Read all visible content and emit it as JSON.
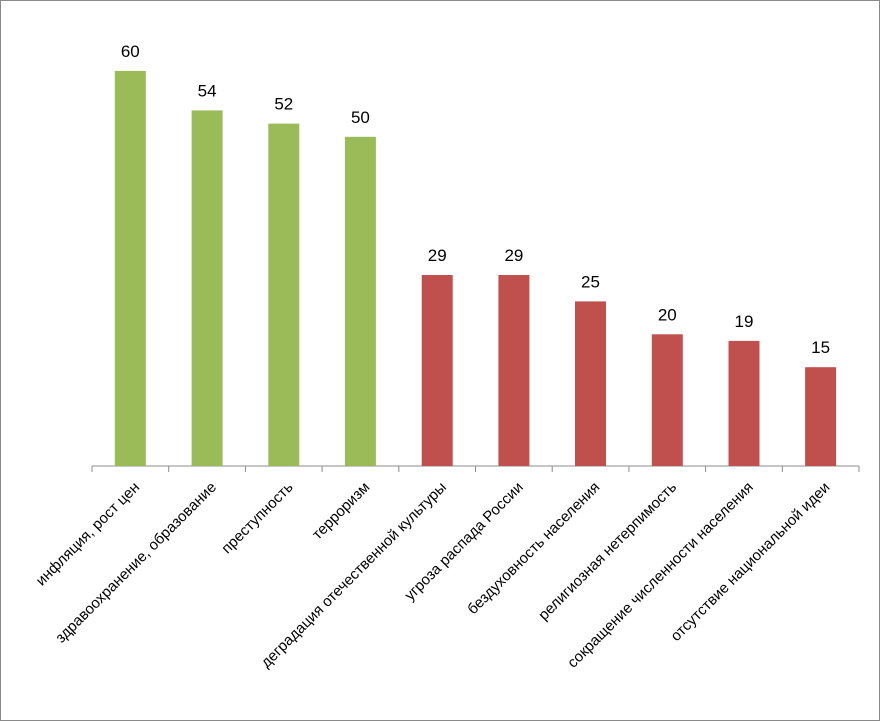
{
  "chart_data": {
    "type": "bar",
    "title": "",
    "xlabel": "",
    "ylabel": "",
    "ylim": [
      0,
      65
    ],
    "grid": false,
    "legend": "none",
    "categories": [
      "инфляция, рост цен",
      "здравоохранение, образование",
      "преступность",
      "терроризм",
      "деградация отечественной культуры",
      "угроза распада России",
      "бездуховность населения",
      "религиозная нетерпимость",
      "сокращение численности населения",
      "отсутствие национальной идеи"
    ],
    "values": [
      60,
      54,
      52,
      50,
      29,
      29,
      25,
      20,
      19,
      15
    ],
    "bar_colors": [
      "#9bbb59",
      "#9bbb59",
      "#9bbb59",
      "#9bbb59",
      "#c0504d",
      "#c0504d",
      "#c0504d",
      "#c0504d",
      "#c0504d",
      "#c0504d"
    ],
    "axis_color": "#8c8c8c"
  }
}
